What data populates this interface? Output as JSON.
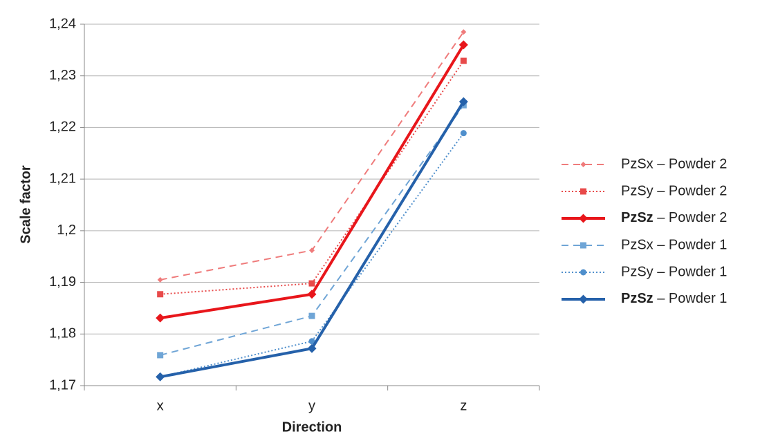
{
  "chart_data": {
    "type": "line",
    "x_label": "Direction",
    "y_label": "Scale factor",
    "categories": [
      "x",
      "y",
      "z"
    ],
    "ylim": [
      1.17,
      1.24
    ],
    "yticks": [
      {
        "value": 1.17,
        "label": "1,17"
      },
      {
        "value": 1.18,
        "label": "1,18"
      },
      {
        "value": 1.19,
        "label": "1,19"
      },
      {
        "value": 1.2,
        "label": "1,2"
      },
      {
        "value": 1.21,
        "label": "1,21"
      },
      {
        "value": 1.22,
        "label": "1,22"
      },
      {
        "value": 1.23,
        "label": "1,23"
      },
      {
        "value": 1.24,
        "label": "1,24"
      }
    ],
    "grid": true,
    "legend": "right",
    "series": [
      {
        "name": "PzSx – Powder 2",
        "color": "#ef7b7b",
        "dash": "dashed",
        "marker": "diamond-small",
        "line_width": 2,
        "values": [
          1.1905,
          1.1962,
          1.2385
        ]
      },
      {
        "name": "PzSy – Powder 2",
        "color": "#e84a4a",
        "dash": "dotted",
        "marker": "square",
        "line_width": 2,
        "values": [
          1.1877,
          1.1898,
          1.2329
        ]
      },
      {
        "name": "PzSz – Powder 2",
        "color": "#e8161b",
        "dash": "solid",
        "marker": "diamond",
        "line_width": 4,
        "label_bold": true,
        "values": [
          1.1831,
          1.1877,
          1.236
        ]
      },
      {
        "name": "PzSx – Powder 1",
        "color": "#6fa5d6",
        "dash": "dashed",
        "marker": "square",
        "line_width": 2,
        "values": [
          1.1759,
          1.1835,
          1.2243
        ]
      },
      {
        "name": "PzSy – Powder 1",
        "color": "#4f8fcc",
        "dash": "dotted",
        "marker": "circle",
        "line_width": 2,
        "values": [
          1.1717,
          1.1786,
          1.2189
        ]
      },
      {
        "name": "PzSz – Powder 1",
        "color": "#2561aa",
        "dash": "solid",
        "marker": "diamond",
        "line_width": 4,
        "label_bold": true,
        "values": [
          1.1717,
          1.1772,
          1.225
        ]
      }
    ]
  }
}
